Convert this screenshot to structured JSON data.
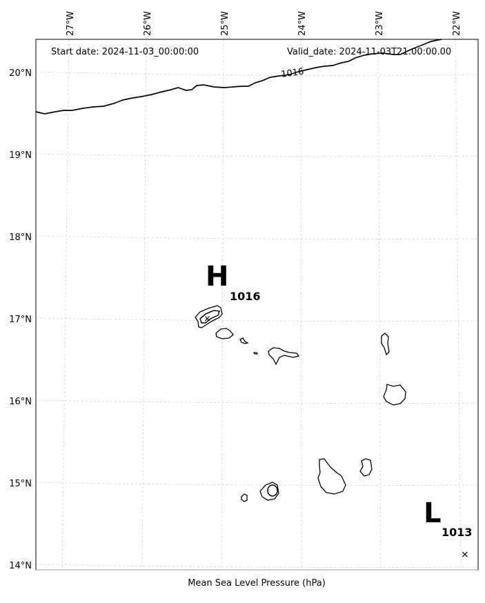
{
  "header": {
    "start_date": "Start date: 2024-11-03_00:00:00",
    "valid_date": "Valid_date: 2024-11-03T21:00:00.00"
  },
  "axes": {
    "lon_ticks": [
      "27°W",
      "26°W",
      "25°W",
      "24°W",
      "23°W",
      "22°W"
    ],
    "lat_ticks": [
      "20°N",
      "19°N",
      "18°N",
      "17°N",
      "16°N",
      "15°N",
      "14°N"
    ],
    "xlabel": "Mean Sea Level Pressure (hPa)"
  },
  "pressure_centers": {
    "high_letter": "H",
    "high_value": "1016",
    "low_letter": "L",
    "low_value": "1013",
    "low_marker": "×"
  },
  "isobars": {
    "label": "1016"
  },
  "colors": {
    "grid": "#cfcfcf",
    "lines": "#000000",
    "background": "#ffffff"
  }
}
